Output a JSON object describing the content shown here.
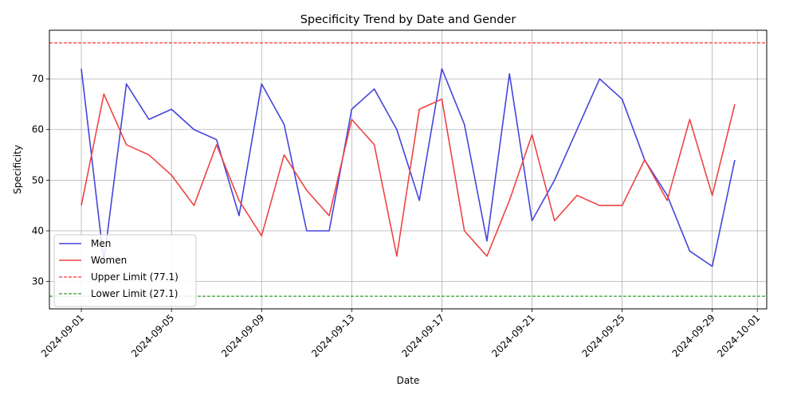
{
  "chart_data": {
    "type": "line",
    "title": "Specificity Trend by Date and Gender",
    "xlabel": "Date",
    "ylabel": "Specificity",
    "x": [
      "2024-09-01",
      "2024-09-02",
      "2024-09-03",
      "2024-09-04",
      "2024-09-05",
      "2024-09-06",
      "2024-09-07",
      "2024-09-08",
      "2024-09-09",
      "2024-09-10",
      "2024-09-11",
      "2024-09-12",
      "2024-09-13",
      "2024-09-14",
      "2024-09-15",
      "2024-09-16",
      "2024-09-17",
      "2024-09-18",
      "2024-09-19",
      "2024-09-20",
      "2024-09-21",
      "2024-09-22",
      "2024-09-23",
      "2024-09-24",
      "2024-09-25",
      "2024-09-26",
      "2024-09-27",
      "2024-09-28",
      "2024-09-29",
      "2024-09-30"
    ],
    "xlim": [
      "2024-08-30T14:00",
      "2024-10-01T10:00"
    ],
    "ylim": [
      24.6,
      79.6
    ],
    "xticks": [
      "2024-09-01",
      "2024-09-05",
      "2024-09-09",
      "2024-09-13",
      "2024-09-17",
      "2024-09-21",
      "2024-09-25",
      "2024-09-29",
      "2024-10-01"
    ],
    "yticks": [
      30,
      40,
      50,
      60,
      70
    ],
    "grid": true,
    "legend_position": "lower-left",
    "series": [
      {
        "name": "Men",
        "color": "#4444dd",
        "values": [
          72,
          34,
          69,
          62,
          64,
          60,
          58,
          43,
          69,
          61,
          40,
          40,
          64,
          68,
          60,
          46,
          72,
          61,
          38,
          71,
          42,
          50,
          60,
          70,
          66,
          54,
          47,
          36,
          33,
          54
        ]
      },
      {
        "name": "Women",
        "color": "#ee4444",
        "values": [
          45,
          67,
          57,
          55,
          51,
          45,
          57,
          46,
          39,
          55,
          48,
          43,
          62,
          57,
          35,
          64,
          66,
          40,
          35,
          46,
          59,
          42,
          47,
          45,
          45,
          54,
          46,
          62,
          47,
          65
        ]
      }
    ],
    "reference_lines": [
      {
        "name": "Upper Limit (77.1)",
        "value": 77.1,
        "color": "#ff0000",
        "style": "dashed"
      },
      {
        "name": "Lower Limit (27.1)",
        "value": 27.1,
        "color": "#008000",
        "style": "dashed"
      }
    ]
  }
}
